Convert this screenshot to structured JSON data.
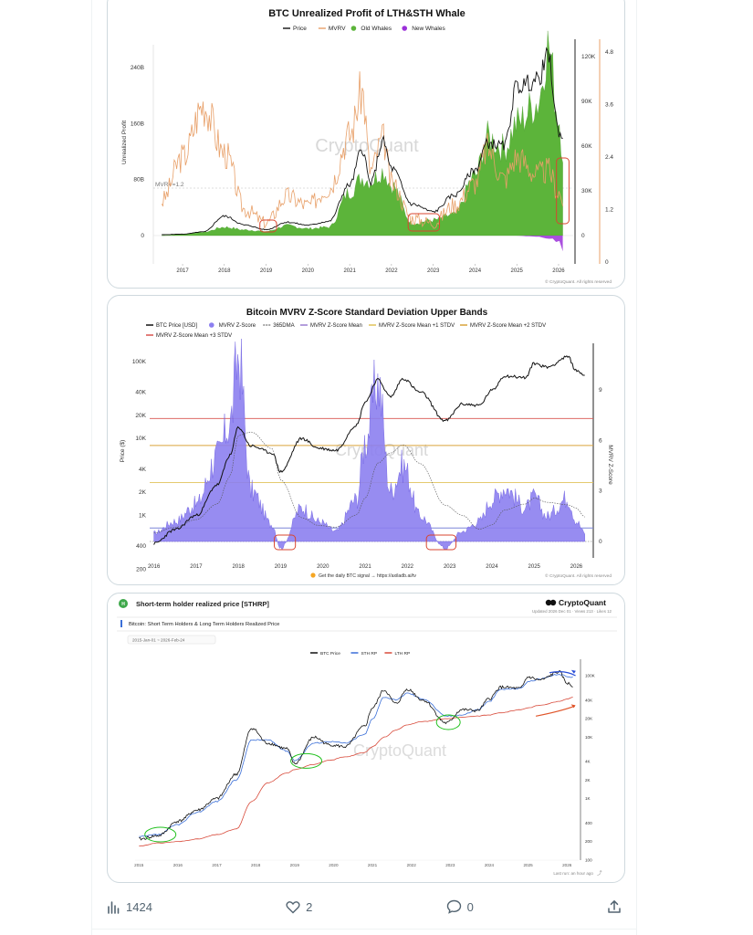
{
  "colors": {
    "price": "#111111",
    "mvrv": "#e8a069",
    "old_whales": "#5cb43a",
    "new_whales": "#9b30d9",
    "zscore": "#8c7ff0",
    "sthrp": "#3b6fd8",
    "lthrp": "#d84a3a",
    "highlight": "#d9452f",
    "highlight_green": "#22c11f",
    "watermark": "#d6d6d6"
  },
  "chart1": {
    "title": "BTC Unrealized Profit of LTH&STH Whale",
    "legend": [
      "Price",
      "MVRV",
      "Old Whales",
      "New Whales"
    ],
    "ylabel": "Unrealized Profit",
    "mvrv_marker": "MVRV=1.2",
    "watermark": "CryptoQuant",
    "copyright": "© CryptoQuant. All rights reserved"
  },
  "chart2": {
    "title": "Bitcoin MVRV Z-Score Standard Deviation Upper Bands",
    "legend": [
      "BTC Price [USD]",
      "MVRV Z-Score",
      "365DMA",
      "MVRV Z-Score Mean",
      "MVRV Z-Score Mean +1 STDV",
      "MVRV Z-Score Mean +2 STDV",
      "MVRV Z-Score Mean +3 STDV"
    ],
    "ylabel": "Price ($)",
    "ylabel_right": "MVRV Z-Score",
    "watermark": "CryptoQuant",
    "signal_note": "Get the daily BTC signal → https://axiladb.ai/tv",
    "copyright": "© CryptoQuant. All rights reserved"
  },
  "chart3": {
    "badge": "H",
    "header": "Short-term holder realized price [STHRP]",
    "brand": "CryptoQuant",
    "meta": "Updated 2026 Dec 01 · Views 213 · Likes 12",
    "subtitle": "Bitcoin: Short Term Holders & Long Term Holders Realized Price",
    "date_range": "2015-Jan-01 ~ 2026-Feb-24",
    "legend": [
      "BTC Price",
      "STH RP",
      "LTH RP"
    ],
    "watermark": "CryptoQuant",
    "last_run": "Last run: an hour ago"
  },
  "chart_data": [
    {
      "type": "area",
      "title": "BTC Unrealized Profit of LTH&STH Whale",
      "xlabel": "",
      "ylabel": "Unrealized Profit",
      "x_ticks": [
        "2017",
        "2018",
        "2019",
        "2020",
        "2021",
        "2022",
        "2023",
        "2024",
        "2025",
        "2026"
      ],
      "y_ticks_left": [
        "0",
        "80B",
        "160B",
        "240B"
      ],
      "y_ticks_right_price": [
        "0",
        "30K",
        "60K",
        "90K",
        "120K"
      ],
      "y_ticks_right_mvrv": [
        "0",
        "1.2",
        "2.4",
        "3.6",
        "4.8"
      ],
      "ylim_left": [
        -40,
        310
      ],
      "mvrv_reference": 1.2,
      "x": [
        2016.5,
        2017,
        2017.5,
        2018,
        2018.5,
        2019,
        2019.5,
        2020,
        2020.5,
        2021,
        2021.3,
        2021.5,
        2021.8,
        2022,
        2022.5,
        2023,
        2023.5,
        2024,
        2024.3,
        2024.7,
        2025,
        2025.5,
        2025.75,
        2026,
        2026.1
      ],
      "series": [
        {
          "name": "Old Whales",
          "values": [
            0,
            2,
            5,
            12,
            8,
            6,
            14,
            10,
            12,
            62,
            82,
            78,
            92,
            72,
            18,
            22,
            30,
            85,
            140,
            125,
            160,
            190,
            270,
            170,
            120
          ]
        },
        {
          "name": "New Whales",
          "values": [
            0,
            0,
            0,
            0,
            0,
            0,
            0,
            0,
            0,
            0,
            0,
            0,
            0,
            0,
            0,
            0,
            0,
            0,
            0,
            0,
            0,
            -2,
            -4,
            -8,
            -18
          ]
        },
        {
          "name": "Price",
          "values": [
            0.6,
            1,
            2.5,
            13,
            7,
            4,
            9,
            7,
            9.5,
            34,
            58,
            35,
            63,
            45,
            21,
            16,
            27,
            44,
            62,
            60,
            100,
            104,
            120,
            70,
            66
          ]
        },
        {
          "name": "MVRV",
          "values": [
            1.4,
            2.4,
            3.6,
            2.5,
            1.2,
            0.9,
            1.5,
            1.3,
            1.7,
            2.9,
            3.9,
            2.1,
            2.8,
            1.8,
            1.0,
            0.9,
            1.3,
            1.8,
            2.6,
            1.9,
            2.4,
            2.0,
            2.1,
            1.6,
            1.4
          ]
        }
      ]
    },
    {
      "type": "area",
      "title": "Bitcoin MVRV Z-Score Standard Deviation Upper Bands",
      "xlabel": "",
      "ylabel": "Price ($)",
      "x_ticks": [
        "2016",
        "2017",
        "2018",
        "2019",
        "2020",
        "2021",
        "2022",
        "2023",
        "2024",
        "2025",
        "2026"
      ],
      "y_ticks_left": [
        "200",
        "400",
        "1K",
        "2K",
        "4K",
        "10K",
        "20K",
        "40K",
        "100K"
      ],
      "y_ticks_right": [
        "0",
        "3",
        "6",
        "9"
      ],
      "reference_lines": [
        {
          "name": "MVRV Z-Score Mean",
          "value": 0.8
        },
        {
          "name": "MVRV Z-Score Mean +1 STDV",
          "value": 3.5
        },
        {
          "name": "MVRV Z-Score Mean +2 STDV",
          "value": 5.7
        },
        {
          "name": "MVRV Z-Score Mean +3 STDV",
          "value": 7.3
        }
      ],
      "x": [
        2016,
        2016.5,
        2017,
        2017.5,
        2017.8,
        2018,
        2018.3,
        2018.8,
        2019,
        2019.5,
        2019.9,
        2020.3,
        2020.8,
        2021,
        2021.3,
        2021.6,
        2021.9,
        2022.3,
        2022.9,
        2023.3,
        2023.7,
        2024,
        2024.3,
        2024.8,
        2025,
        2025.3,
        2025.8,
        2026,
        2026.2
      ],
      "series": [
        {
          "name": "BTC Price [USD]",
          "values": [
            430,
            650,
            1000,
            2500,
            6000,
            14000,
            8000,
            6500,
            3700,
            10000,
            7500,
            7000,
            15000,
            30000,
            58000,
            35000,
            60000,
            40000,
            17000,
            28000,
            27000,
            42000,
            65000,
            62000,
            95000,
            85000,
            115000,
            76000,
            67000
          ]
        },
        {
          "name": "MVRV Z-Score",
          "values": [
            0.5,
            1.2,
            2.2,
            5,
            7,
            11,
            3,
            1,
            -0.4,
            2,
            1.2,
            0.6,
            2.5,
            6,
            9.5,
            3,
            4.5,
            1.5,
            -0.4,
            0.6,
            1.2,
            2.5,
            3.2,
            2,
            2.6,
            1.5,
            2.6,
            1.2,
            0.5
          ]
        }
      ]
    },
    {
      "type": "line",
      "title": "Bitcoin: Short Term Holders & Long Term Holders Realized Price",
      "xlabel": "",
      "ylabel": "",
      "x_ticks": [
        "2015",
        "2016",
        "2017",
        "2018",
        "2019",
        "2020",
        "2021",
        "2022",
        "2023",
        "2024",
        "2025",
        "2026"
      ],
      "y_ticks_right": [
        "100",
        "200",
        "400",
        "1K",
        "2K",
        "4K",
        "10K",
        "20K",
        "40K",
        "100K"
      ],
      "x": [
        2015,
        2015.5,
        2016,
        2016.5,
        2017,
        2017.5,
        2017.9,
        2018.3,
        2018.8,
        2019,
        2019.5,
        2019.9,
        2020.3,
        2020.8,
        2021,
        2021.3,
        2021.6,
        2021.9,
        2022.3,
        2022.9,
        2023.3,
        2023.7,
        2024,
        2024.3,
        2024.8,
        2025,
        2025.3,
        2025.8,
        2026,
        2026.15
      ],
      "series": [
        {
          "name": "BTC Price",
          "values": [
            220,
            250,
            430,
            650,
            1000,
            2500,
            14000,
            8000,
            6500,
            3700,
            10000,
            7500,
            7000,
            15000,
            30000,
            58000,
            35000,
            60000,
            40000,
            17000,
            28000,
            27000,
            42000,
            65000,
            62000,
            95000,
            85000,
            115000,
            76000,
            67000
          ]
        },
        {
          "name": "STH RP",
          "values": [
            240,
            260,
            380,
            600,
            900,
            2000,
            9000,
            9000,
            6000,
            4200,
            8000,
            8500,
            8000,
            11000,
            20000,
            45000,
            40000,
            52000,
            42000,
            22000,
            23000,
            28000,
            38000,
            60000,
            62000,
            80000,
            88000,
            105000,
            98000,
            94000
          ]
        },
        {
          "name": "LTH RP",
          "values": [
            170,
            190,
            200,
            220,
            260,
            320,
            900,
            1800,
            2600,
            3000,
            3600,
            4200,
            4800,
            5600,
            7000,
            10000,
            13000,
            16000,
            18000,
            20000,
            21000,
            22000,
            23000,
            25000,
            28000,
            30000,
            33000,
            38000,
            42000,
            45000
          ]
        }
      ]
    }
  ]
}
